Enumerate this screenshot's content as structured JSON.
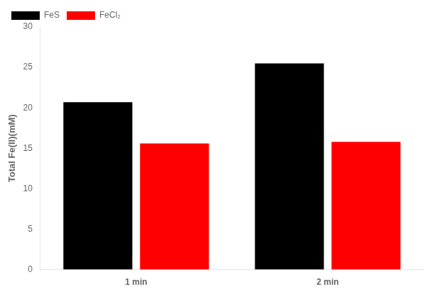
{
  "chart_data": {
    "type": "bar",
    "categories": [
      "1 min",
      "2 min"
    ],
    "series": [
      {
        "name": "FeS",
        "color": "#000000",
        "values": [
          20.7,
          25.5
        ]
      },
      {
        "name": "FeCl₂",
        "color": "#ff0000",
        "values": [
          15.6,
          15.8
        ]
      }
    ],
    "ylabel": "Total Fe(II)(mM)",
    "ylim": [
      0,
      30
    ],
    "yticks": [
      0,
      5,
      10,
      15,
      20,
      25,
      30
    ],
    "grid": false,
    "legend": "upper left"
  }
}
